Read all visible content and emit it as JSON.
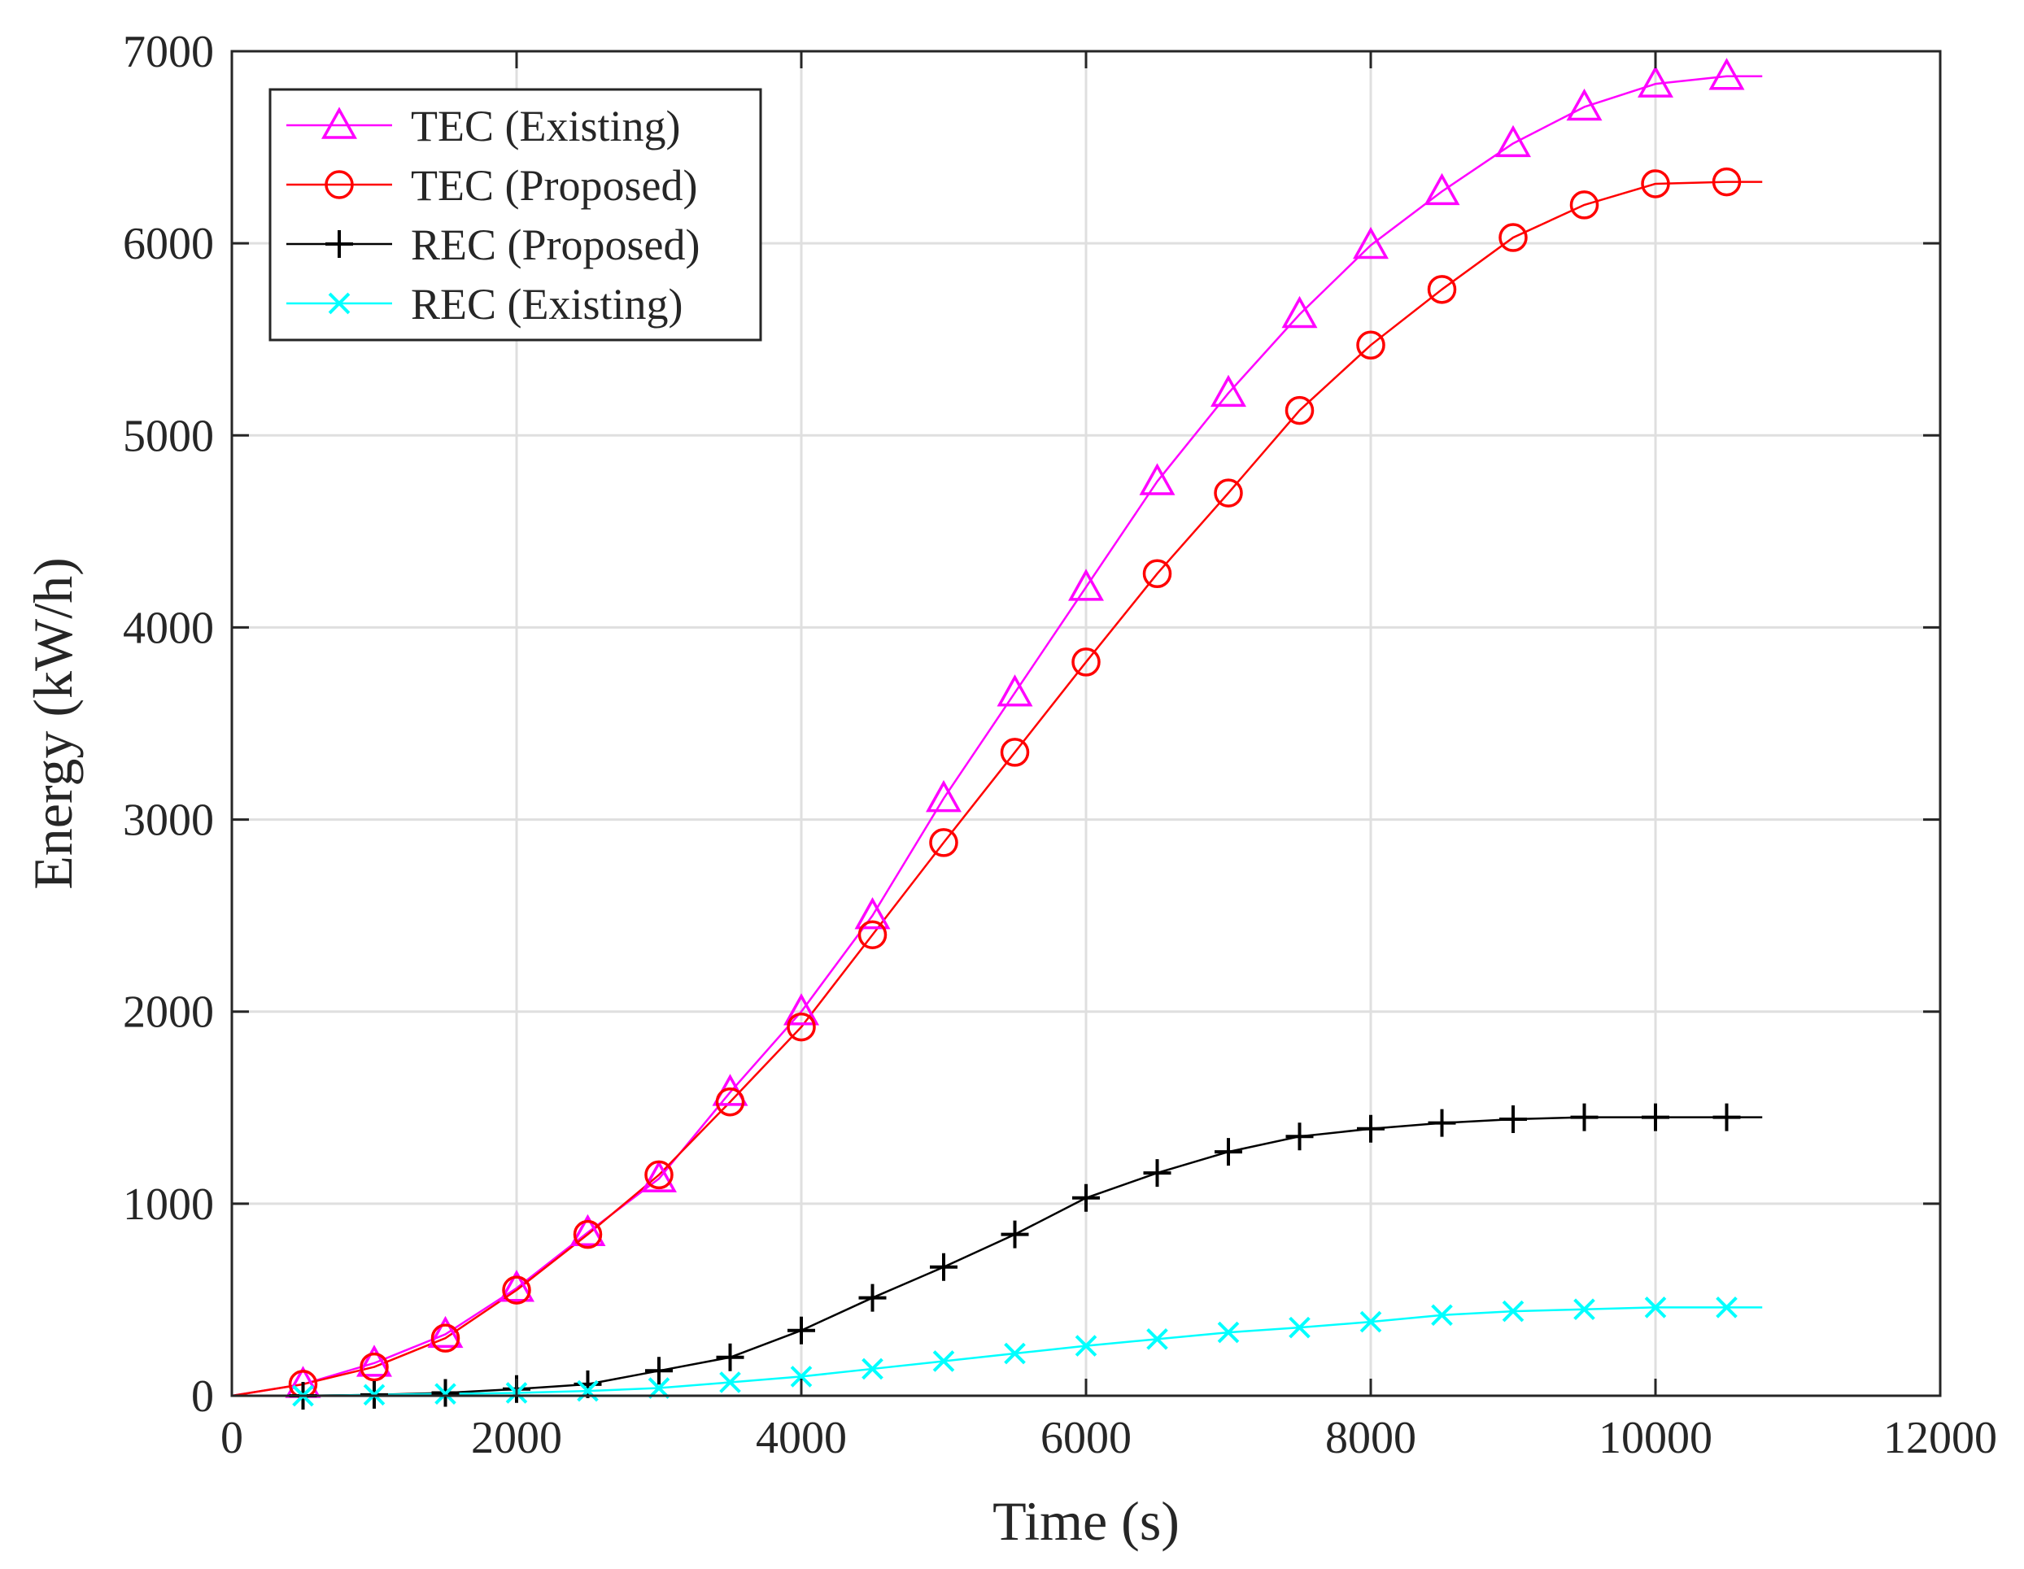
{
  "chart_data": {
    "type": "line",
    "title": "",
    "xlabel": "Time (s)",
    "ylabel": "Energy (kW/h)",
    "xlim": [
      0,
      12000
    ],
    "ylim": [
      0,
      7000
    ],
    "xticks": [
      0,
      2000,
      4000,
      6000,
      8000,
      10000,
      12000
    ],
    "yticks": [
      0,
      1000,
      2000,
      3000,
      4000,
      5000,
      6000,
      7000
    ],
    "grid": true,
    "legend_position": "top-left",
    "x": [
      0,
      500,
      1000,
      1500,
      2000,
      2500,
      3000,
      3500,
      4000,
      4500,
      5000,
      5500,
      6000,
      6500,
      7000,
      7500,
      8000,
      8500,
      9000,
      9500,
      10000,
      10500,
      10750
    ],
    "series": [
      {
        "name": "TEC (Existing)",
        "color": "#ff00ff",
        "marker": "triangle",
        "values": [
          0,
          60,
          170,
          320,
          560,
          850,
          1130,
          1580,
          2000,
          2500,
          3110,
          3660,
          4210,
          4760,
          5220,
          5630,
          5990,
          6270,
          6520,
          6710,
          6830,
          6870,
          6870
        ]
      },
      {
        "name": "TEC (Proposed)",
        "color": "#ff0000",
        "marker": "circle",
        "values": [
          0,
          60,
          150,
          300,
          550,
          840,
          1150,
          1530,
          1920,
          2400,
          2880,
          3350,
          3820,
          4280,
          4700,
          5130,
          5470,
          5760,
          6030,
          6200,
          6310,
          6320,
          6320
        ]
      },
      {
        "name": "REC (Proposed)",
        "color": "#000000",
        "marker": "plus",
        "values": [
          0,
          0,
          5,
          15,
          35,
          60,
          130,
          200,
          340,
          510,
          670,
          840,
          1030,
          1160,
          1270,
          1350,
          1390,
          1420,
          1440,
          1450,
          1450,
          1450,
          1450
        ]
      },
      {
        "name": "REC (Existing)",
        "color": "#00ffff",
        "marker": "x",
        "values": [
          0,
          0,
          5,
          10,
          15,
          25,
          40,
          70,
          100,
          140,
          180,
          220,
          260,
          295,
          330,
          355,
          385,
          420,
          440,
          450,
          460,
          460,
          460
        ]
      }
    ]
  }
}
